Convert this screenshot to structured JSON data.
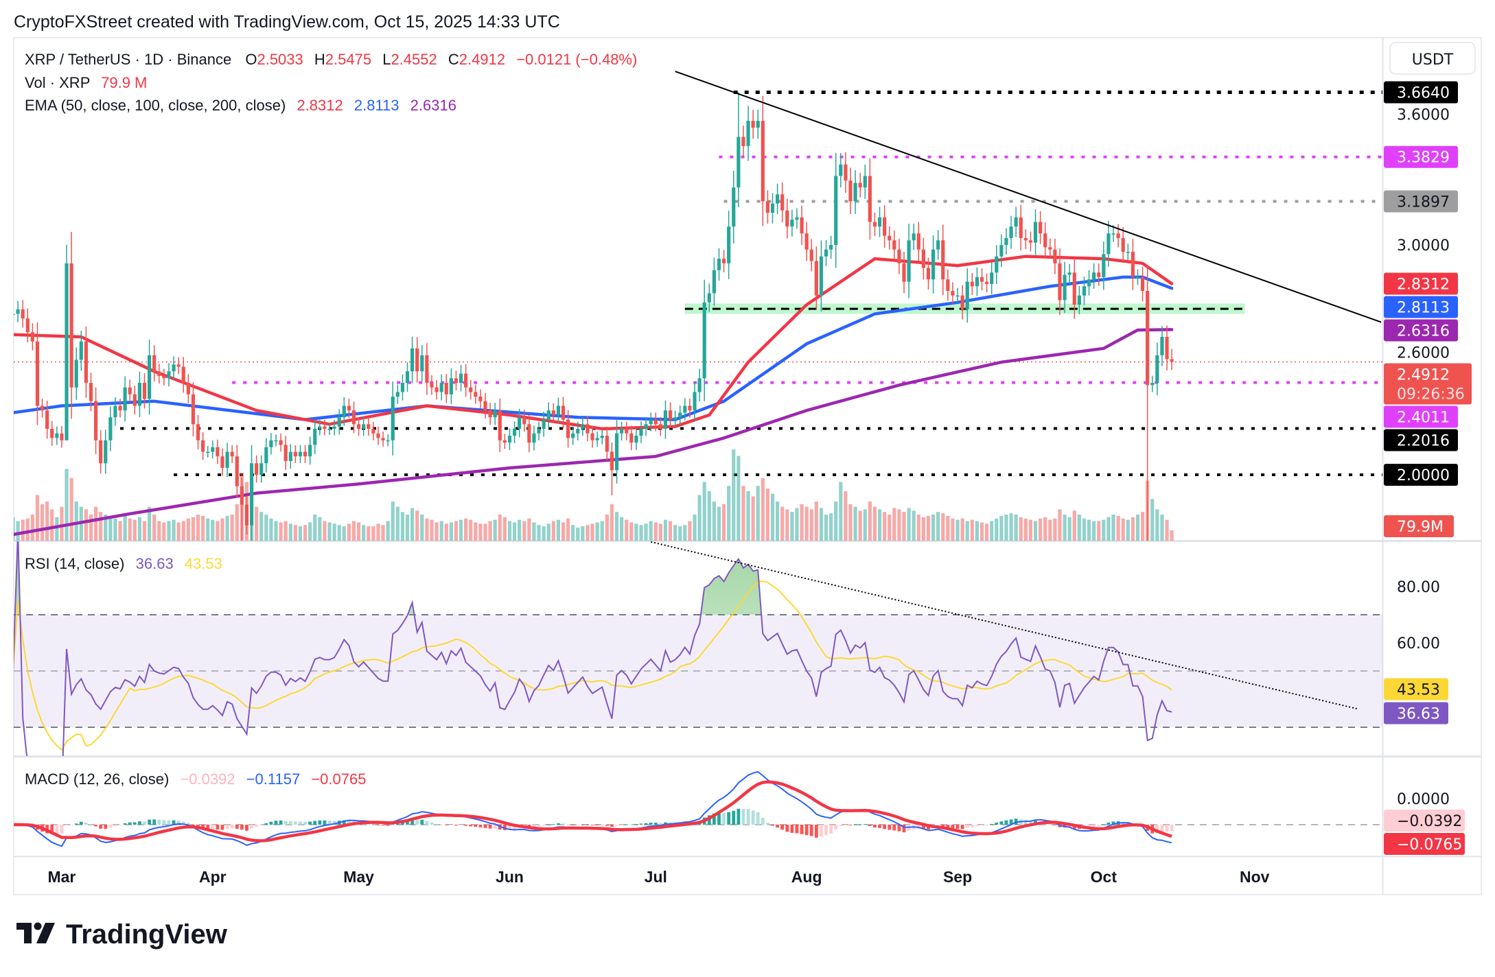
{
  "header": {
    "title": "CryptoFXStreet created with TradingView.com, Oct 15, 2025 14:33 UTC"
  },
  "legend": {
    "symbol": "XRP / TetherUS · 1D · Binance",
    "o_label": "O",
    "o_value": "2.5033",
    "h_label": "H",
    "h_value": "2.5475",
    "l_label": "L",
    "l_value": "2.4552",
    "c_label": "C",
    "c_value": "2.4912",
    "change": "−0.0121 (−0.48%)",
    "vol_label": "Vol · XRP",
    "vol_value": "79.9 M",
    "ema_label": "EMA (50, close, 100, close, 200, close)",
    "ema50": "2.8312",
    "ema100": "2.8113",
    "ema200": "2.6316",
    "rsi_label": "RSI (14, close)",
    "rsi_value": "36.63",
    "rsi_ma_value": "43.53",
    "macd_label": "MACD (12, 26, close)",
    "macd_hist": "−0.0392",
    "macd_line": "−0.1157",
    "macd_signal": "−0.0765"
  },
  "currency_button": "USDT",
  "colors": {
    "up": "#26a69a",
    "down": "#ef5350",
    "ema50": "#f23645",
    "ema100": "#2962ff",
    "ema200": "#9c27b0",
    "rsi": "#7e57c2",
    "rsi_ma": "#fdd835",
    "macd": "#2962ff",
    "signal": "#f23645"
  },
  "price_axis": {
    "ticks": [
      "3.6000",
      "3.0000",
      "2.6000"
    ],
    "labels": [
      {
        "text": "3.6640",
        "value": 3.664,
        "bg": "#000000",
        "fg": "#ffffff"
      },
      {
        "text": "3.3829",
        "value": 3.3829,
        "bg": "#e040fb",
        "fg": "#ffffff"
      },
      {
        "text": "3.1897",
        "value": 3.1897,
        "bg": "#9e9e9e",
        "fg": "#131722"
      },
      {
        "text": "2.8312",
        "value": 2.8312,
        "bg": "#f23645",
        "fg": "#ffffff"
      },
      {
        "text": "2.8113",
        "value": 2.8113,
        "bg": "#2962ff",
        "fg": "#ffffff"
      },
      {
        "text": "2.6316",
        "value": 2.6316,
        "bg": "#9c27b0",
        "fg": "#ffffff"
      },
      {
        "text": "2.4011",
        "value": 2.4011,
        "bg": "#e040fb",
        "fg": "#ffffff"
      },
      {
        "text": "2.2016",
        "value": 2.2016,
        "bg": "#000000",
        "fg": "#ffffff"
      },
      {
        "text": "2.0000",
        "value": 2.0,
        "bg": "#000000",
        "fg": "#ffffff"
      }
    ],
    "current_price": {
      "text": "2.4912",
      "countdown": "09:26:36",
      "value": 2.4912,
      "bg": "#ef5350"
    },
    "volume_label": {
      "text": "79.9M",
      "bg": "#ef5350"
    }
  },
  "rsi_axis": {
    "ticks": [
      "80.00",
      "60.00"
    ],
    "labels": [
      {
        "text": "43.53",
        "value": 43.53,
        "bg": "#fdd835",
        "fg": "#131722"
      },
      {
        "text": "36.63",
        "value": 36.63,
        "bg": "#7e57c2",
        "fg": "#ffffff"
      }
    ]
  },
  "macd_axis": {
    "labels": [
      {
        "text": "−0.0392",
        "value": -0.0392,
        "bg": "#ffcdd2",
        "fg": "#131722"
      },
      {
        "text": "−0.0765",
        "value": -0.0765,
        "bg": "#f23645",
        "fg": "#ffffff"
      }
    ]
  },
  "time_axis": [
    {
      "label": "Mar",
      "date": "2025-03-01"
    },
    {
      "label": "Apr",
      "date": "2025-04-01"
    },
    {
      "label": "May",
      "date": "2025-05-01"
    },
    {
      "label": "Jun",
      "date": "2025-06-01"
    },
    {
      "label": "Jul",
      "date": "2025-07-01"
    },
    {
      "label": "Aug",
      "date": "2025-08-01"
    },
    {
      "label": "Sep",
      "date": "2025-09-01"
    },
    {
      "label": "Oct",
      "date": "2025-10-01"
    },
    {
      "label": "Nov",
      "date": "2025-11-01"
    }
  ],
  "chart_data": {
    "type": "candlestick",
    "symbol": "XRP / TetherUS",
    "interval": "1D",
    "exchange": "Binance",
    "first_date": "2025-02-19",
    "last_date": "2025-10-15",
    "close": [
      2.7,
      2.72,
      2.68,
      2.62,
      2.58,
      2.3,
      2.28,
      2.2,
      2.16,
      2.18,
      2.15,
      2.92,
      2.38,
      2.5,
      2.58,
      2.4,
      2.32,
      2.15,
      2.05,
      2.15,
      2.25,
      2.3,
      2.28,
      2.38,
      2.35,
      2.3,
      2.4,
      2.33,
      2.52,
      2.45,
      2.43,
      2.42,
      2.45,
      2.48,
      2.47,
      2.4,
      2.35,
      2.22,
      2.15,
      2.1,
      2.1,
      2.12,
      2.08,
      2.03,
      2.1,
      2.08,
      1.95,
      1.87,
      1.78,
      2.05,
      2.0,
      2.05,
      2.12,
      2.15,
      2.15,
      2.13,
      2.06,
      2.1,
      2.08,
      2.1,
      2.08,
      2.13,
      2.2,
      2.21,
      2.2,
      2.2,
      2.21,
      2.25,
      2.3,
      2.28,
      2.22,
      2.2,
      2.22,
      2.2,
      2.18,
      2.16,
      2.15,
      2.15,
      2.34,
      2.36,
      2.4,
      2.45,
      2.55,
      2.45,
      2.52,
      2.4,
      2.38,
      2.36,
      2.4,
      2.35,
      2.42,
      2.4,
      2.44,
      2.38,
      2.36,
      2.34,
      2.32,
      2.28,
      2.25,
      2.28,
      2.15,
      2.14,
      2.17,
      2.2,
      2.25,
      2.22,
      2.14,
      2.18,
      2.2,
      2.24,
      2.28,
      2.26,
      2.3,
      2.24,
      2.16,
      2.18,
      2.2,
      2.22,
      2.18,
      2.15,
      2.16,
      2.17,
      2.1,
      2.02,
      2.18,
      2.2,
      2.18,
      2.14,
      2.17,
      2.2,
      2.22,
      2.24,
      2.22,
      2.2,
      2.28,
      2.24,
      2.25,
      2.27,
      2.3,
      2.28,
      2.36,
      2.42,
      2.75,
      2.79,
      2.89,
      2.94,
      2.92,
      3.08,
      3.25,
      3.47,
      3.43,
      3.54,
      3.51,
      3.54,
      3.19,
      3.14,
      3.18,
      3.22,
      3.15,
      3.08,
      3.11,
      3.12,
      3.05,
      2.98,
      2.93,
      2.78,
      2.95,
      2.98,
      3.0,
      3.3,
      3.35,
      3.28,
      3.19,
      3.27,
      3.25,
      3.3,
      3.1,
      3.08,
      3.12,
      3.04,
      3.02,
      2.98,
      2.92,
      2.84,
      3.02,
      3.05,
      2.98,
      2.9,
      2.85,
      2.98,
      3.02,
      2.85,
      2.8,
      2.78,
      2.78,
      2.72,
      2.84,
      2.82,
      2.86,
      2.84,
      2.83,
      2.88,
      2.95,
      3.0,
      3.03,
      3.08,
      3.12,
      3.03,
      3.02,
      3.01,
      3.1,
      3.05,
      2.99,
      2.98,
      2.92,
      2.76,
      2.87,
      2.88,
      2.74,
      2.78,
      2.82,
      2.85,
      2.88,
      2.86,
      2.96,
      3.05,
      3.05,
      3.03,
      2.97,
      2.97,
      2.86,
      2.86,
      2.8,
      2.39,
      2.4,
      2.52,
      2.6,
      2.5033,
      2.4912
    ],
    "volume_millions": [
      180,
      150,
      160,
      170,
      200,
      350,
      280,
      300,
      240,
      180,
      260,
      550,
      480,
      300,
      260,
      240,
      200,
      260,
      220,
      200,
      190,
      170,
      150,
      190,
      170,
      160,
      180,
      150,
      260,
      200,
      150,
      140,
      150,
      160,
      140,
      150,
      170,
      180,
      200,
      190,
      170,
      160,
      150,
      170,
      190,
      200,
      280,
      520,
      450,
      480,
      260,
      220,
      200,
      170,
      150,
      140,
      150,
      130,
      120,
      110,
      120,
      140,
      200,
      180,
      150,
      140,
      130,
      120,
      110,
      130,
      150,
      140,
      120,
      110,
      110,
      130,
      120,
      150,
      300,
      260,
      220,
      200,
      250,
      230,
      200,
      170,
      160,
      140,
      150,
      130,
      140,
      150,
      160,
      170,
      160,
      140,
      130,
      130,
      150,
      160,
      200,
      180,
      150,
      140,
      160,
      150,
      170,
      140,
      120,
      110,
      130,
      150,
      160,
      140,
      170,
      120,
      100,
      110,
      120,
      130,
      140,
      150,
      200,
      280,
      220,
      180,
      160,
      140,
      130,
      120,
      130,
      150,
      140,
      130,
      160,
      150,
      120,
      110,
      120,
      150,
      200,
      350,
      450,
      380,
      300,
      260,
      280,
      420,
      700,
      650,
      420,
      380,
      340,
      420,
      480,
      400,
      360,
      300,
      260,
      240,
      220,
      250,
      280,
      260,
      240,
      300,
      250,
      200,
      210,
      300,
      450,
      380,
      280,
      260,
      230,
      240,
      300,
      260,
      240,
      220,
      200,
      250,
      240,
      220,
      250,
      230,
      200,
      180,
      190,
      200,
      220,
      210,
      190,
      170,
      160,
      170,
      150,
      160,
      150,
      140,
      130,
      150,
      170,
      190,
      200,
      210,
      200,
      180,
      170,
      160,
      150,
      170,
      180,
      160,
      170,
      240,
      200,
      180,
      230,
      200,
      170,
      160,
      150,
      150,
      160,
      180,
      200,
      190,
      170,
      160,
      180,
      200,
      220,
      460,
      320,
      240,
      200,
      160,
      79.9
    ],
    "extremes": [
      {
        "date": "2025-03-02",
        "high": 3.0,
        "low": 2.15
      },
      {
        "date": "2025-04-07",
        "low": 1.61
      },
      {
        "date": "2025-06-22",
        "low": 1.91
      },
      {
        "date": "2025-07-18",
        "high": 3.664
      },
      {
        "date": "2025-10-10",
        "low": 1.7
      },
      {
        "date": "2025-10-15",
        "open": 2.5033,
        "high": 2.5475,
        "low": 2.4552
      }
    ],
    "ema50": [
      [
        "2025-02-19",
        2.61
      ],
      [
        "2025-03-05",
        2.6
      ],
      [
        "2025-03-20",
        2.45
      ],
      [
        "2025-04-10",
        2.28
      ],
      [
        "2025-04-25",
        2.22
      ],
      [
        "2025-05-15",
        2.3
      ],
      [
        "2025-06-01",
        2.26
      ],
      [
        "2025-06-20",
        2.2
      ],
      [
        "2025-07-05",
        2.21
      ],
      [
        "2025-07-12",
        2.26
      ],
      [
        "2025-07-20",
        2.49
      ],
      [
        "2025-08-01",
        2.74
      ],
      [
        "2025-08-15",
        2.94
      ],
      [
        "2025-09-01",
        2.91
      ],
      [
        "2025-09-15",
        2.95
      ],
      [
        "2025-10-01",
        2.94
      ],
      [
        "2025-10-09",
        2.92
      ],
      [
        "2025-10-15",
        2.8312
      ]
    ],
    "ema100": [
      [
        "2025-02-19",
        2.27
      ],
      [
        "2025-03-01",
        2.3
      ],
      [
        "2025-03-20",
        2.32
      ],
      [
        "2025-04-20",
        2.24
      ],
      [
        "2025-05-15",
        2.3
      ],
      [
        "2025-06-15",
        2.25
      ],
      [
        "2025-07-05",
        2.24
      ],
      [
        "2025-07-15",
        2.32
      ],
      [
        "2025-08-01",
        2.57
      ],
      [
        "2025-08-15",
        2.7
      ],
      [
        "2025-09-01",
        2.75
      ],
      [
        "2025-09-20",
        2.82
      ],
      [
        "2025-10-05",
        2.86
      ],
      [
        "2025-10-09",
        2.86
      ],
      [
        "2025-10-15",
        2.8113
      ]
    ],
    "ema200": [
      [
        "2025-02-19",
        1.74
      ],
      [
        "2025-03-15",
        1.83
      ],
      [
        "2025-04-10",
        1.92
      ],
      [
        "2025-05-01",
        1.96
      ],
      [
        "2025-06-01",
        2.03
      ],
      [
        "2025-07-01",
        2.08
      ],
      [
        "2025-07-15",
        2.16
      ],
      [
        "2025-08-01",
        2.28
      ],
      [
        "2025-08-20",
        2.39
      ],
      [
        "2025-09-10",
        2.49
      ],
      [
        "2025-10-01",
        2.55
      ],
      [
        "2025-10-08",
        2.63
      ],
      [
        "2025-10-15",
        2.6316
      ]
    ],
    "horizontal_levels": [
      {
        "price": 3.664,
        "color": "#000000",
        "line_style": "dotted-bold",
        "from": "2025-07-17"
      },
      {
        "price": 3.3829,
        "color": "#e040fb",
        "line_style": "dotted",
        "from": "2025-07-14"
      },
      {
        "price": 3.1897,
        "color": "#9e9e9e",
        "line_style": "dotted",
        "from": "2025-07-15"
      },
      {
        "price": 2.4011,
        "color": "#e040fb",
        "line_style": "dotted",
        "from": "2025-04-05"
      },
      {
        "price": 2.2016,
        "color": "#000000",
        "line_style": "dotted",
        "from": "2025-03-13"
      },
      {
        "price": 2.0,
        "color": "#000000",
        "line_style": "dotted",
        "from": "2025-03-24"
      }
    ],
    "support_zone": {
      "low": 2.7,
      "high": 2.745,
      "mid": 2.722,
      "color": "#b9f6ca",
      "from": "2025-07-07",
      "to": "2025-10-30"
    },
    "current_price_line": 2.4912,
    "price_trendline": [
      [
        "2025-07-05",
        3.755
      ],
      [
        "2025-11-27",
        2.664
      ]
    ],
    "rsi_trendline": [
      [
        "2025-06-30",
        95.9
      ],
      [
        "2025-11-22",
        36.6
      ]
    ],
    "rsi_bands": {
      "upper": 70,
      "middle": 50,
      "lower": 30
    },
    "macd_params": [
      12,
      26,
      9
    ],
    "rsi_period": 14
  }
}
